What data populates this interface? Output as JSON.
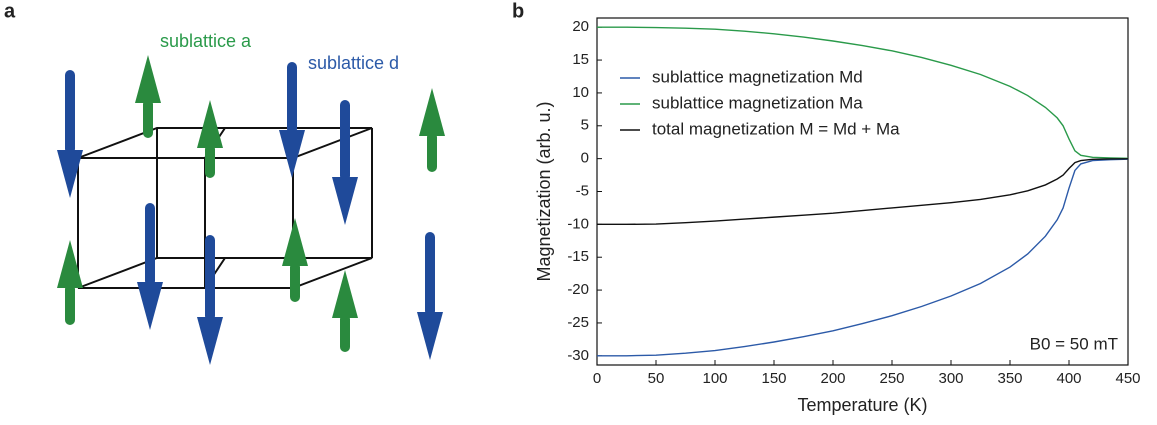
{
  "panels": {
    "a": {
      "label": "a",
      "annotations": [
        "sublattice a",
        "sublattice d"
      ]
    },
    "b": {
      "label": "b"
    }
  },
  "chart_data": {
    "type": "line",
    "x_label": "Temperature (K)",
    "y_label": "Magnetization (arb. u.)",
    "annotation": "B0 = 50 mT",
    "x": [
      0,
      25,
      50,
      75,
      100,
      125,
      150,
      175,
      200,
      225,
      250,
      275,
      300,
      325,
      350,
      365,
      380,
      390,
      395,
      400,
      405,
      410,
      420,
      435,
      450
    ],
    "series": [
      {
        "name": "sublattice magnetization Md",
        "color": "#2c5aa8",
        "values": [
          -30,
          -30,
          -29.9,
          -29.6,
          -29.2,
          -28.6,
          -27.9,
          -27.1,
          -26.2,
          -25.1,
          -23.9,
          -22.5,
          -20.9,
          -19,
          -16.5,
          -14.5,
          -11.8,
          -9.3,
          -7.5,
          -4.5,
          -1.8,
          -0.8,
          -0.3,
          -0.15,
          -0.08
        ]
      },
      {
        "name": "sublattice magnetization Ma",
        "color": "#2a9a4a",
        "values": [
          20,
          20,
          19.95,
          19.85,
          19.7,
          19.4,
          19,
          18.5,
          17.9,
          17.2,
          16.4,
          15.4,
          14.2,
          12.8,
          11,
          9.6,
          7.8,
          6.2,
          5,
          3,
          1.2,
          0.5,
          0.2,
          0.1,
          0.05
        ]
      },
      {
        "name": "total magnetization M = Md + Ma",
        "color": "#111111",
        "values": [
          -10,
          -10,
          -9.95,
          -9.75,
          -9.5,
          -9.2,
          -8.9,
          -8.6,
          -8.3,
          -7.9,
          -7.5,
          -7.1,
          -6.7,
          -6.2,
          -5.5,
          -4.9,
          -4,
          -3.1,
          -2.5,
          -1.5,
          -0.6,
          -0.3,
          -0.1,
          -0.05,
          -0.03
        ]
      }
    ],
    "xlim": [
      0,
      450
    ],
    "xticks": [
      0,
      50,
      100,
      150,
      200,
      250,
      300,
      350,
      400,
      450
    ],
    "ylim": [
      -31.4,
      21.4
    ],
    "yticks": [
      20,
      15,
      10,
      5,
      0,
      -5,
      -10,
      -15,
      -20,
      -25,
      -30
    ],
    "grid": false,
    "legend": "upper left"
  }
}
